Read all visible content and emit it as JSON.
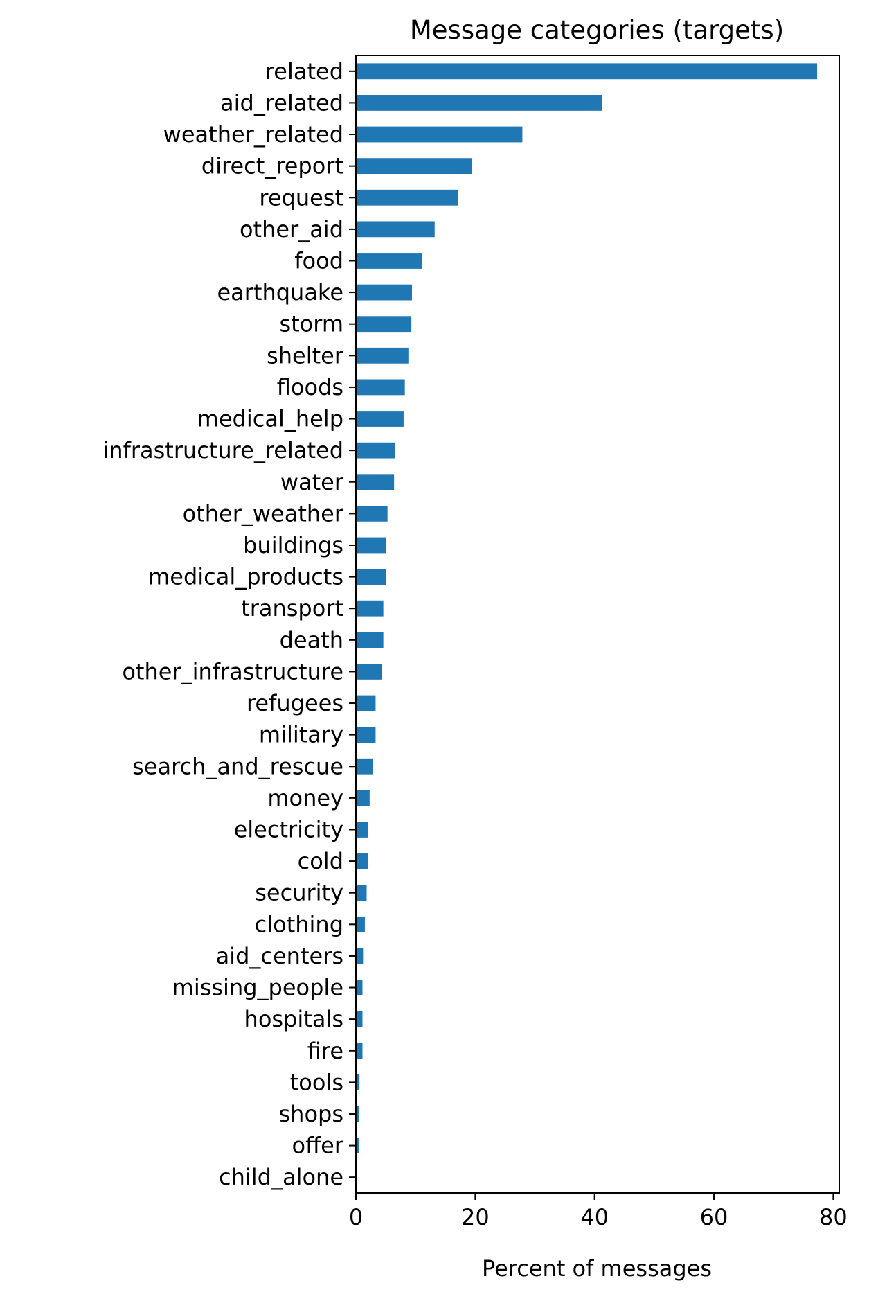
{
  "chart_data": {
    "type": "bar",
    "orientation": "horizontal",
    "title": "Message categories (targets)",
    "xlabel": "Percent of messages",
    "ylabel": "",
    "xlim": [
      0,
      81
    ],
    "xticks": [
      0,
      20,
      40,
      60,
      80
    ],
    "grid": false,
    "legend": "none",
    "bar_color": "#1f77b4",
    "categories": [
      "related",
      "aid_related",
      "weather_related",
      "direct_report",
      "request",
      "other_aid",
      "food",
      "earthquake",
      "storm",
      "shelter",
      "floods",
      "medical_help",
      "infrastructure_related",
      "water",
      "other_weather",
      "buildings",
      "medical_products",
      "transport",
      "death",
      "other_infrastructure",
      "refugees",
      "military",
      "search_and_rescue",
      "money",
      "electricity",
      "cold",
      "security",
      "clothing",
      "aid_centers",
      "missing_people",
      "hospitals",
      "fire",
      "tools",
      "shops",
      "offer",
      "child_alone"
    ],
    "values": [
      77.3,
      41.3,
      27.9,
      19.4,
      17.1,
      13.2,
      11.1,
      9.4,
      9.3,
      8.8,
      8.2,
      8.0,
      6.5,
      6.4,
      5.3,
      5.1,
      5.0,
      4.6,
      4.6,
      4.4,
      3.3,
      3.3,
      2.8,
      2.3,
      2.0,
      2.0,
      1.8,
      1.5,
      1.2,
      1.1,
      1.1,
      1.1,
      0.6,
      0.5,
      0.5,
      0.0
    ]
  }
}
